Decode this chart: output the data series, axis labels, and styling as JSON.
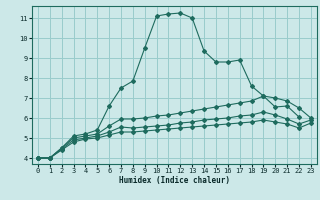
{
  "xlabel": "Humidex (Indice chaleur)",
  "bg_color": "#cce8e8",
  "line_color": "#1e6b5e",
  "grid_color": "#99cccc",
  "xlim": [
    -0.5,
    23.5
  ],
  "ylim": [
    3.7,
    11.6
  ],
  "xticks": [
    0,
    1,
    2,
    3,
    4,
    5,
    6,
    7,
    8,
    9,
    10,
    11,
    12,
    13,
    14,
    15,
    16,
    17,
    18,
    19,
    20,
    21,
    22,
    23
  ],
  "yticks": [
    4,
    5,
    6,
    7,
    8,
    9,
    10,
    11
  ],
  "line1_x": [
    0,
    1,
    2,
    3,
    4,
    5,
    6,
    7,
    8,
    9,
    10,
    11,
    12,
    13,
    14,
    15,
    16,
    17,
    18,
    19,
    20,
    21,
    22
  ],
  "line1_y": [
    4.0,
    4.0,
    4.5,
    5.1,
    5.2,
    5.4,
    6.6,
    7.5,
    7.85,
    9.5,
    11.1,
    11.2,
    11.25,
    11.0,
    9.35,
    8.8,
    8.8,
    8.9,
    7.6,
    7.1,
    6.55,
    6.6,
    6.05
  ],
  "line2_x": [
    0,
    1,
    2,
    3,
    4,
    5,
    6,
    7,
    8,
    9,
    10,
    11,
    12,
    13,
    14,
    15,
    16,
    17,
    18,
    19,
    20,
    21,
    22,
    23
  ],
  "line2_y": [
    4.0,
    4.0,
    4.5,
    5.0,
    5.1,
    5.2,
    5.6,
    5.95,
    5.95,
    6.0,
    6.1,
    6.15,
    6.25,
    6.35,
    6.45,
    6.55,
    6.65,
    6.75,
    6.85,
    7.1,
    7.0,
    6.85,
    6.5,
    6.0
  ],
  "line3_x": [
    0,
    1,
    2,
    3,
    4,
    5,
    6,
    7,
    8,
    9,
    10,
    11,
    12,
    13,
    14,
    15,
    16,
    17,
    18,
    19,
    20,
    21,
    22,
    23
  ],
  "line3_y": [
    4.0,
    4.0,
    4.45,
    4.9,
    5.0,
    5.1,
    5.3,
    5.55,
    5.5,
    5.55,
    5.6,
    5.65,
    5.75,
    5.8,
    5.9,
    5.95,
    6.0,
    6.1,
    6.15,
    6.3,
    6.15,
    5.95,
    5.7,
    5.9
  ],
  "line4_x": [
    0,
    1,
    2,
    3,
    4,
    5,
    6,
    7,
    8,
    9,
    10,
    11,
    12,
    13,
    14,
    15,
    16,
    17,
    18,
    19,
    20,
    21,
    22,
    23
  ],
  "line4_y": [
    4.0,
    4.0,
    4.4,
    4.8,
    4.95,
    5.0,
    5.15,
    5.3,
    5.3,
    5.35,
    5.4,
    5.45,
    5.5,
    5.55,
    5.6,
    5.65,
    5.7,
    5.75,
    5.8,
    5.9,
    5.8,
    5.7,
    5.5,
    5.75
  ]
}
